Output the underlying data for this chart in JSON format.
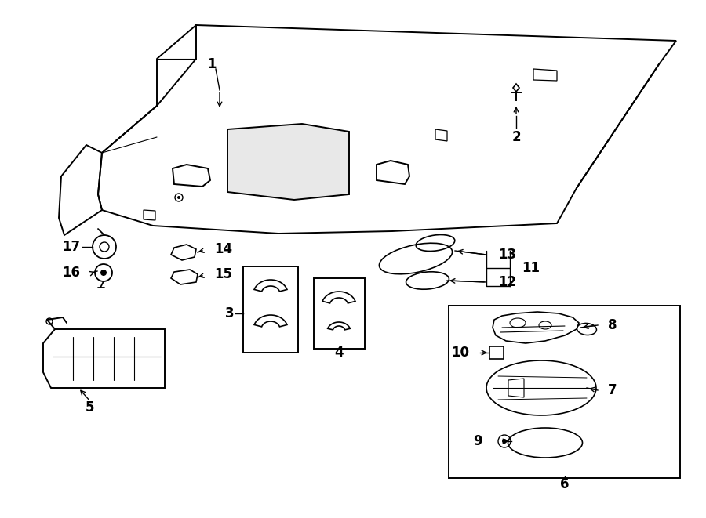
{
  "bg_color": "#ffffff",
  "line_color": "#000000",
  "fig_width": 9.0,
  "fig_height": 6.61,
  "dpi": 100,
  "label_fontsize": 12
}
